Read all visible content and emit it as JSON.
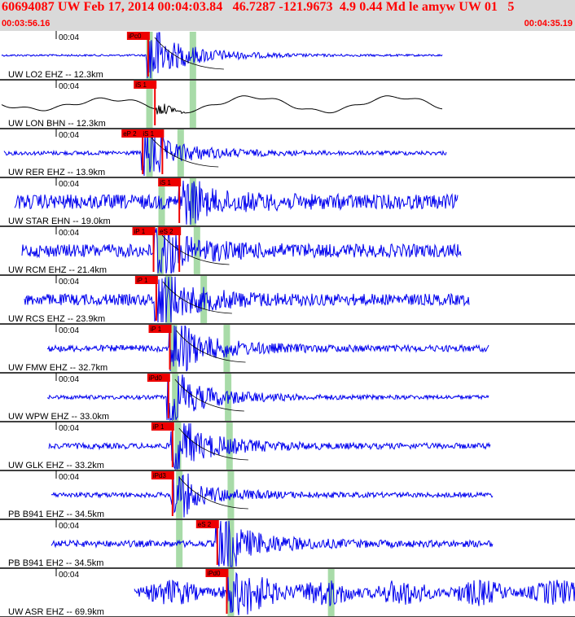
{
  "header": {
    "title": "60694087 UW Feb 17, 2014 00:04:03.84   46.7287 -121.9673  4.9 0.44 Md le amyw UW 01   5",
    "start_time": "00:03:56.16",
    "end_time": "00:04:35.19"
  },
  "colors": {
    "trace": "#0000ee",
    "pick": "#ee0000",
    "window": "#a8dba8",
    "header_text": "#ff0000",
    "curve": "#000000"
  },
  "traces": [
    {
      "label": "UW LO2 EHZ -- 12.3km",
      "time_tick": "00:04",
      "color": "#0000ee",
      "picks": [
        {
          "label": "iPc0",
          "t": 7.5
        }
      ],
      "windows": [
        7.6,
        10.8
      ]
    },
    {
      "label": "UW LON BHN -- 12.3km",
      "time_tick": "00:04",
      "color": "#000000",
      "picks": [
        {
          "label": "iS 1",
          "t": 8.0
        }
      ],
      "windows": [
        7.6,
        10.8
      ]
    },
    {
      "label": "UW RER EHZ -- 13.9km",
      "time_tick": "00:04",
      "color": "#0000ee",
      "picks": [
        {
          "label": "eP 2",
          "t": 7.1
        },
        {
          "label": "iS 1",
          "t": 8.55
        }
      ],
      "windows": [
        7.6,
        9.9
      ]
    },
    {
      "label": "UW STAR EHN -- 19.0km",
      "time_tick": "00:04",
      "color": "#0000ee",
      "picks": [
        {
          "label": "iS 1",
          "t": 9.8
        }
      ],
      "windows": [
        8.5,
        10.8
      ]
    },
    {
      "label": "UW RCM EHZ -- 21.4km",
      "time_tick": "00:04",
      "color": "#0000ee",
      "picks": [
        {
          "label": "iP 1",
          "t": 7.9
        },
        {
          "label": "eS 2",
          "t": 9.8
        }
      ],
      "windows": [
        8.4,
        11.1
      ]
    },
    {
      "label": "UW RCS EHZ -- 23.9km",
      "time_tick": "00:04",
      "color": "#0000ee",
      "picks": [
        {
          "label": "iP 1",
          "t": 8.1
        }
      ],
      "windows": [
        9.0,
        11.6
      ]
    },
    {
      "label": "UW FMW EHZ -- 32.7km",
      "time_tick": "00:04",
      "color": "#0000ee",
      "picks": [
        {
          "label": "iP 1",
          "t": 9.1
        }
      ],
      "windows": [
        9.4,
        13.3
      ]
    },
    {
      "label": "UW WPW EHZ -- 33.0km",
      "time_tick": "00:04",
      "color": "#0000ee",
      "picks": [
        {
          "label": "iPd0",
          "t": 9.0
        }
      ],
      "windows": [
        9.5,
        13.4
      ]
    },
    {
      "label": "UW GLK EHZ -- 33.2km",
      "time_tick": "00:04",
      "color": "#0000ee",
      "picks": [
        {
          "label": "iP 1",
          "t": 9.3
        }
      ],
      "windows": [
        9.7,
        13.5
      ]
    },
    {
      "label": "PB B941 EHZ -- 34.5km",
      "time_tick": "00:04",
      "color": "#0000ee",
      "picks": [
        {
          "label": "iPd3",
          "t": 9.3
        }
      ],
      "windows": [
        9.8,
        13.6
      ]
    },
    {
      "label": "PB B941 EH2 -- 34.5km",
      "time_tick": "00:04",
      "color": "#0000ee",
      "picks": [
        {
          "label": "eS 2",
          "t": 12.6
        }
      ],
      "windows": [
        9.8,
        13.6
      ]
    },
    {
      "label": "UW ASR EHZ -- 69.9km",
      "time_tick": "00:04",
      "color": "#0000ee",
      "picks": [
        {
          "label": "iPd0",
          "t": 13.3
        }
      ],
      "windows": [
        13.6,
        21.0
      ]
    }
  ]
}
